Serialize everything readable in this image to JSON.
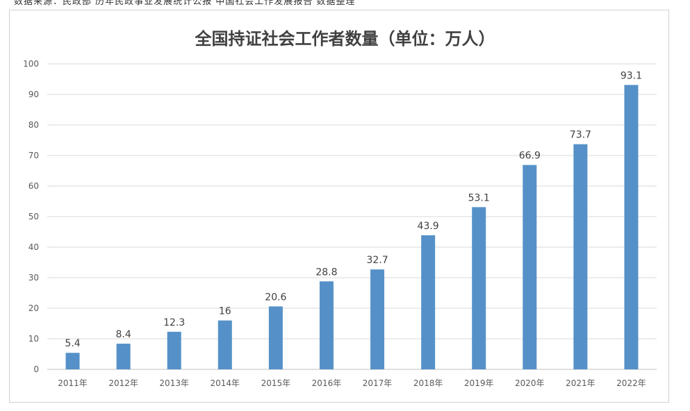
{
  "chart_data": {
    "type": "bar",
    "title": "全国持证社会工作者数量（单位：万人）",
    "categories": [
      "2011年",
      "2012年",
      "2013年",
      "2014年",
      "2015年",
      "2016年",
      "2017年",
      "2018年",
      "2019年",
      "2020年",
      "2021年",
      "2022年"
    ],
    "series": [
      {
        "values": [
          5.4,
          8.4,
          12.3,
          16,
          20.6,
          28.8,
          32.7,
          43.9,
          53.1,
          66.9,
          73.7,
          93.1
        ]
      }
    ],
    "data_labels": [
      "5.4",
      "8.4",
      "12.3",
      "16",
      "20.6",
      "28.8",
      "32.7",
      "43.9",
      "53.1",
      "66.9",
      "73.7",
      "93.1"
    ],
    "ylim": [
      0,
      100
    ],
    "yticks": [
      0,
      10,
      20,
      30,
      40,
      50,
      60,
      70,
      80,
      90,
      100
    ],
    "grid": true,
    "bar_color": "#5591c8",
    "grid_color": "#d9d9d9",
    "axis_color": "#bfbfbf"
  },
  "top_strip_text": "数据来源：民政部 历年民政事业发展统计公报 中国社会工作发展报告 数据整理"
}
